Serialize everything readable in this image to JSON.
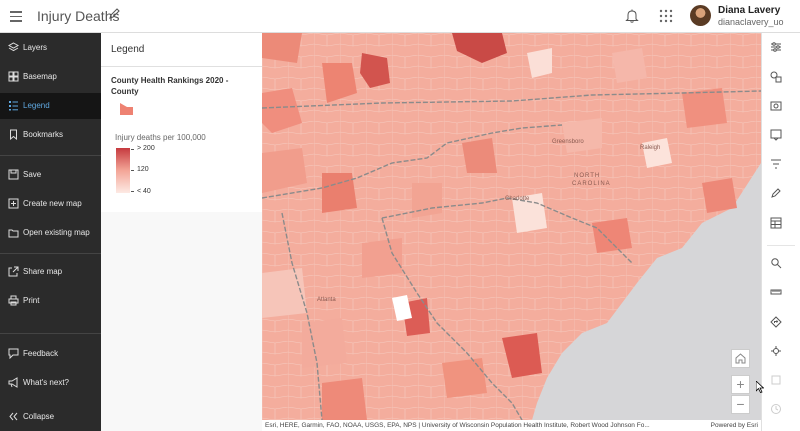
{
  "header": {
    "title": "Injury Deaths",
    "user_name": "Diana Lavery",
    "user_id": "dianaclavery_uo"
  },
  "nav": {
    "items": [
      {
        "id": "layers",
        "label": "Layers",
        "icon": "layers-icon"
      },
      {
        "id": "basemap",
        "label": "Basemap",
        "icon": "basemap-icon"
      },
      {
        "id": "legend",
        "label": "Legend",
        "icon": "legend-icon",
        "active": true
      },
      {
        "id": "bookmarks",
        "label": "Bookmarks",
        "icon": "bookmark-icon"
      },
      {
        "id": "save",
        "label": "Save",
        "icon": "save-icon"
      },
      {
        "id": "create",
        "label": "Create new map",
        "icon": "create-map-icon"
      },
      {
        "id": "open",
        "label": "Open existing map",
        "icon": "open-map-icon"
      },
      {
        "id": "share",
        "label": "Share map",
        "icon": "share-icon"
      },
      {
        "id": "print",
        "label": "Print",
        "icon": "print-icon"
      },
      {
        "id": "feedback",
        "label": "Feedback",
        "icon": "feedback-icon"
      },
      {
        "id": "whatsnext",
        "label": "What's next?",
        "icon": "megaphone-icon"
      },
      {
        "id": "collapse",
        "label": "Collapse",
        "icon": "chevrons-left-icon"
      }
    ]
  },
  "legend": {
    "panel_title": "Legend",
    "layer_title": "County Health Rankings 2020 - County",
    "field_label": "Injury deaths per 100,000",
    "ramp_labels": [
      "> 200",
      "120",
      "< 40"
    ],
    "colors": {
      "high": "#c63a3f",
      "mid": "#f3a597",
      "low": "#fdeae4",
      "swatch": "#ee8272"
    }
  },
  "map": {
    "labels": [
      "Greensboro",
      "Raleigh",
      "NORTH",
      "CAROLINA",
      "Charlotte",
      "Atlanta"
    ],
    "attribution": "Esri, HERE, Garmin, FAO, NOAA, USGS, EPA, NPS | University of Wisconsin Population Health Institute, Robert Wood Johnson Fo...",
    "powered_by": "Powered by Esri",
    "zoom_in": "+",
    "zoom_out": "−"
  },
  "toolbar": {
    "tools": [
      "properties-icon",
      "styles-icon",
      "configure-popups-icon",
      "pop-ups-icon",
      "filter-icon",
      "sketch-icon",
      "table-icon",
      "search-icon",
      "measure-icon",
      "directions-icon",
      "location-icon",
      "print-tool-icon",
      "history-icon"
    ]
  }
}
